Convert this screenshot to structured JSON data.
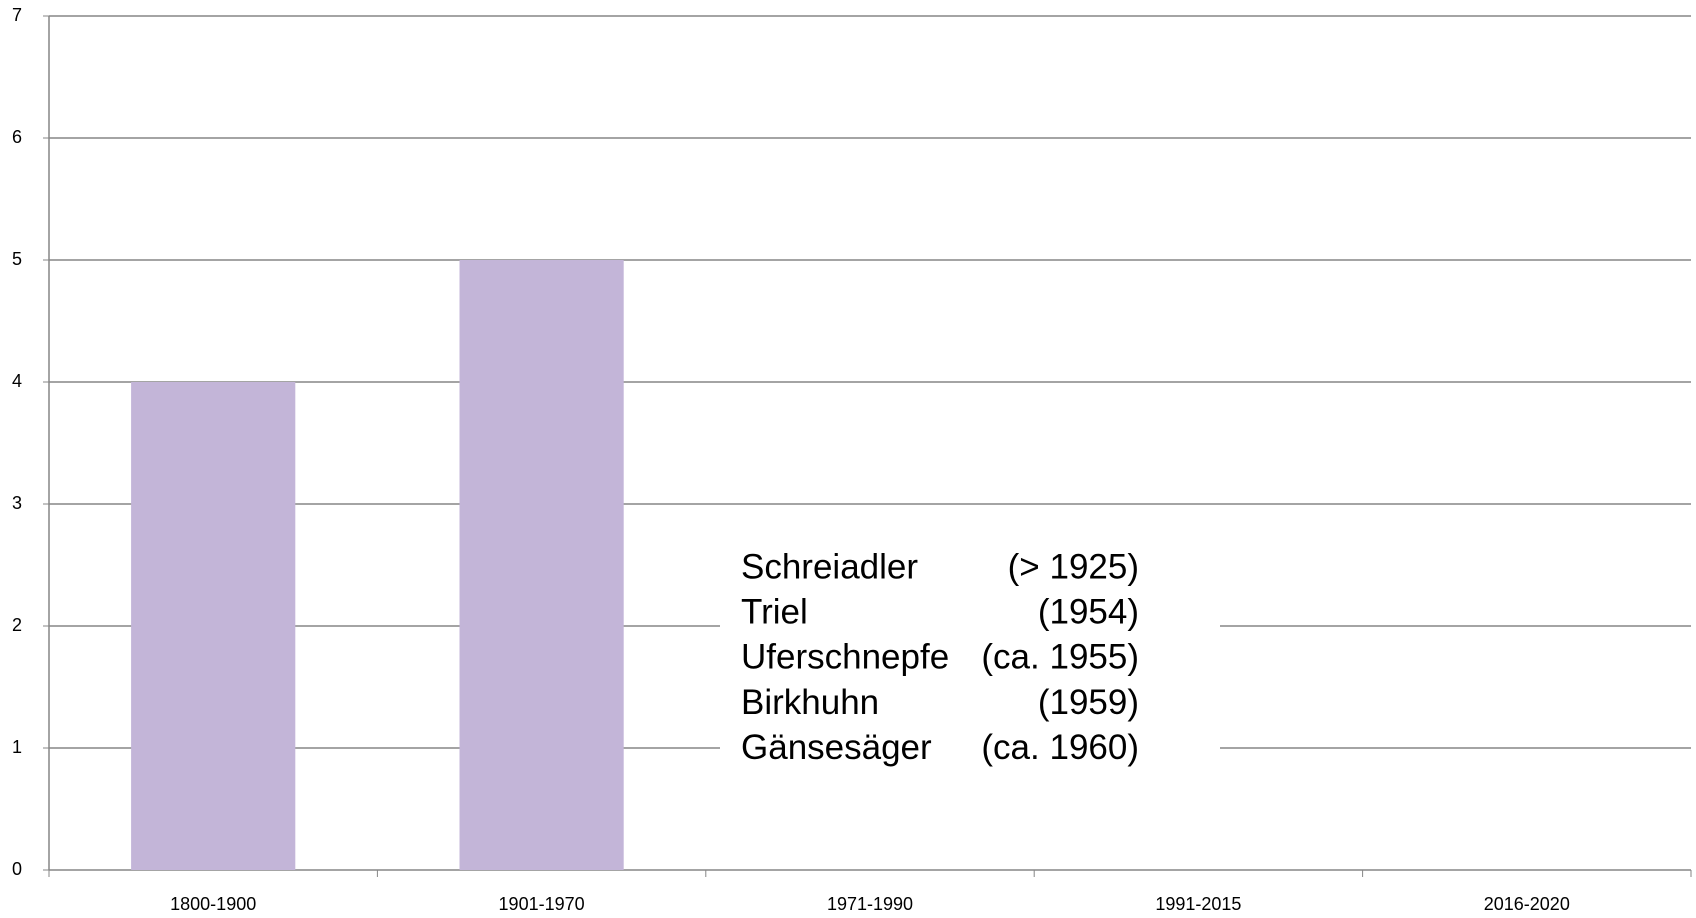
{
  "chart_data": {
    "type": "bar",
    "categories": [
      "1800-1900",
      "1901-1970",
      "1971-1990",
      "1991-2015",
      "2016-2020"
    ],
    "values": [
      4,
      5,
      0,
      0,
      0
    ],
    "color": "#c3b5d8",
    "ylim": [
      0,
      7
    ],
    "yticks": [
      0,
      1,
      2,
      3,
      4,
      5,
      6,
      7
    ],
    "grid": true,
    "annotations": [
      {
        "name": "Schreiadler",
        "date": "(> 1925)"
      },
      {
        "name": "Triel",
        "date": "(1954)"
      },
      {
        "name": "Uferschnepfe",
        "date": "(ca. 1955)"
      },
      {
        "name": "Birkhuhn",
        "date": "(1959)"
      },
      {
        "name": "Gänsesäger",
        "date": "(ca. 1960)"
      }
    ]
  }
}
